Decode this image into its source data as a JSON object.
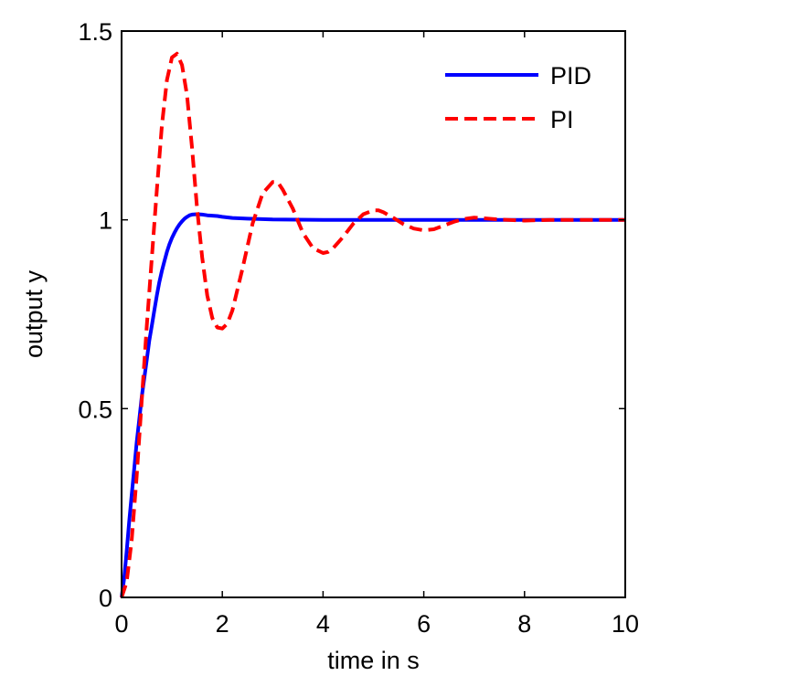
{
  "chart_data": {
    "type": "line",
    "title": "",
    "xlabel": "time in s",
    "ylabel": "output y",
    "xlim": [
      0,
      10
    ],
    "ylim": [
      0,
      1.5
    ],
    "xticks": [
      0,
      2,
      4,
      6,
      8,
      10
    ],
    "xtick_labels": [
      "0",
      "2",
      "4",
      "6",
      "8",
      "10"
    ],
    "yticks": [
      0,
      0.5,
      1,
      1.5
    ],
    "ytick_labels": [
      "0",
      "0.5",
      "1",
      "1.5"
    ],
    "grid": false,
    "legend_position": "top-right",
    "series": [
      {
        "name": "PID",
        "color": "#0000ff",
        "style": "solid",
        "x": [
          0,
          0.05,
          0.1,
          0.15,
          0.2,
          0.25,
          0.3,
          0.35,
          0.4,
          0.45,
          0.5,
          0.55,
          0.6,
          0.65,
          0.7,
          0.75,
          0.8,
          0.85,
          0.9,
          0.95,
          1.0,
          1.05,
          1.1,
          1.15,
          1.2,
          1.25,
          1.3,
          1.35,
          1.4,
          1.5,
          1.6,
          1.7,
          1.8,
          1.9,
          2.0,
          2.2,
          2.5,
          3.0,
          4.0,
          6.0,
          8.0,
          10.0
        ],
        "y": [
          0.0,
          0.05,
          0.12,
          0.2,
          0.27,
          0.34,
          0.41,
          0.47,
          0.53,
          0.58,
          0.63,
          0.68,
          0.72,
          0.76,
          0.8,
          0.835,
          0.865,
          0.89,
          0.915,
          0.935,
          0.952,
          0.966,
          0.978,
          0.988,
          0.996,
          1.003,
          1.008,
          1.012,
          1.014,
          1.015,
          1.014,
          1.012,
          1.011,
          1.01,
          1.008,
          1.005,
          1.003,
          1.001,
          1.0,
          1.0,
          1.0,
          1.0
        ]
      },
      {
        "name": "PI",
        "color": "#ff0000",
        "style": "dashed",
        "x": [
          0,
          0.1,
          0.2,
          0.3,
          0.4,
          0.5,
          0.6,
          0.7,
          0.8,
          0.9,
          1.0,
          1.1,
          1.2,
          1.3,
          1.4,
          1.5,
          1.6,
          1.7,
          1.8,
          1.9,
          2.0,
          2.1,
          2.2,
          2.4,
          2.6,
          2.8,
          3.0,
          3.1,
          3.2,
          3.4,
          3.6,
          3.8,
          4.0,
          4.1,
          4.2,
          4.4,
          4.6,
          4.8,
          5.0,
          5.1,
          5.2,
          5.4,
          5.6,
          5.8,
          6.0,
          6.2,
          6.4,
          6.6,
          6.8,
          7.0,
          7.5,
          8.0,
          8.5,
          9.0,
          10.0
        ],
        "y": [
          0.0,
          0.04,
          0.15,
          0.32,
          0.52,
          0.72,
          0.9,
          1.08,
          1.25,
          1.37,
          1.43,
          1.44,
          1.41,
          1.33,
          1.19,
          1.03,
          0.9,
          0.8,
          0.74,
          0.715,
          0.712,
          0.725,
          0.76,
          0.87,
          0.99,
          1.07,
          1.1,
          1.1,
          1.08,
          1.03,
          0.965,
          0.925,
          0.912,
          0.915,
          0.925,
          0.955,
          0.99,
          1.015,
          1.025,
          1.025,
          1.02,
          1.005,
          0.988,
          0.977,
          0.972,
          0.975,
          0.985,
          0.995,
          1.002,
          1.006,
          1.001,
          0.998,
          1.0,
          1.0,
          1.0
        ]
      }
    ]
  }
}
